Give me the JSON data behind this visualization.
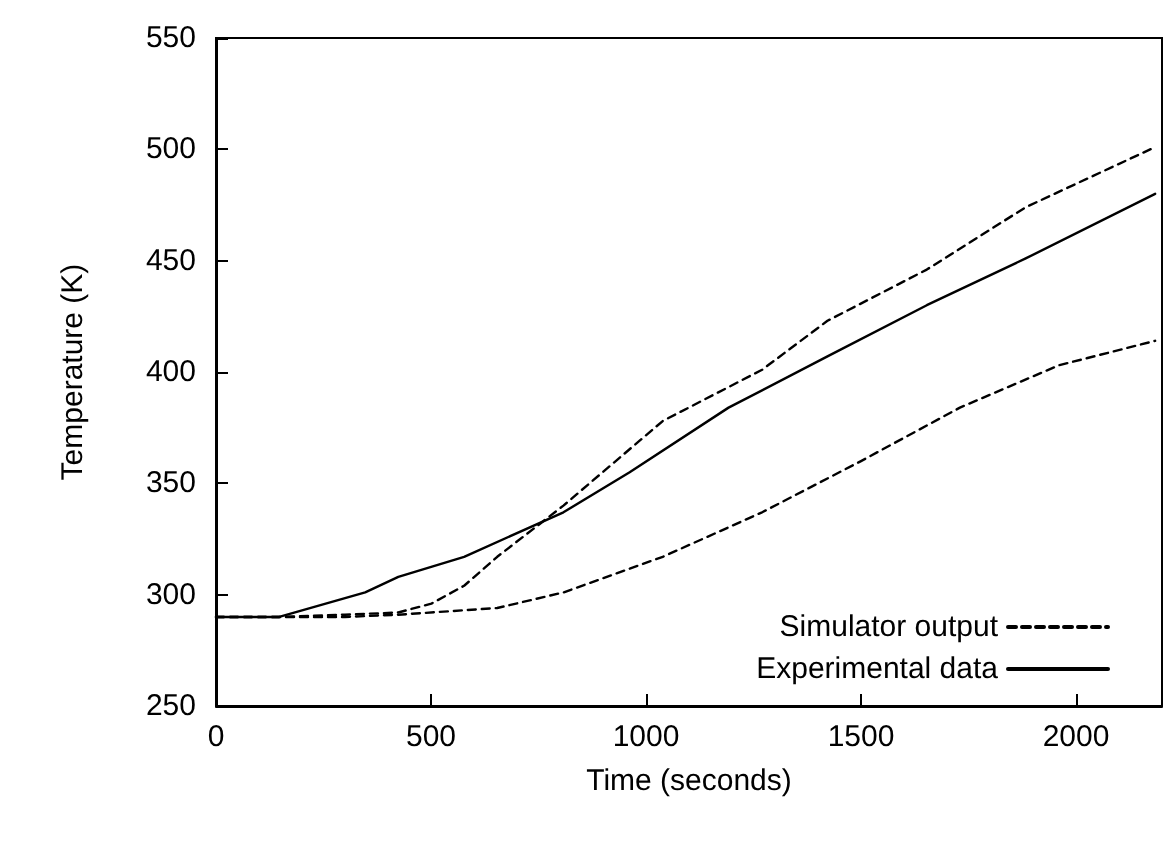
{
  "chart_data": {
    "type": "line",
    "xlabel": "Time (seconds)",
    "ylabel": "Temperature (K)",
    "xlim": [
      0,
      2200
    ],
    "xticks": [
      0,
      500,
      1000,
      1500,
      2000
    ],
    "ylim": [
      250,
      550
    ],
    "yticks": [
      250,
      300,
      350,
      400,
      450,
      500,
      550
    ],
    "grid": false,
    "legend": "bottom right",
    "marker": "none",
    "series": [
      {
        "name": "Simulator output",
        "color": "#000000",
        "line_style": "dashed",
        "x": [
          0,
          150,
          300,
          424,
          501,
          577,
          654,
          808,
          1039,
          1270,
          1422,
          1653,
          1883,
          2184
        ],
        "values": [
          290,
          290,
          291,
          292,
          296,
          304,
          317,
          340,
          378,
          401,
          423,
          446,
          474,
          501
        ]
      },
      {
        "color": "#000000",
        "line_style": "dashed",
        "x": [
          0,
          150,
          300,
          424,
          654,
          808,
          1039,
          1270,
          1500,
          1730,
          1960,
          2184
        ],
        "values": [
          290,
          290,
          290,
          291,
          294,
          301,
          317,
          337,
          360,
          384,
          403,
          414
        ]
      },
      {
        "name": "Experimental data",
        "color": "#000000",
        "line_style": "solid",
        "x": [
          0,
          147,
          347,
          424,
          577,
          808,
          962,
          1192,
          1422,
          1653,
          1883,
          2184
        ],
        "values": [
          290,
          290,
          301,
          308,
          317,
          337,
          355,
          384,
          407,
          430,
          451,
          480
        ]
      }
    ]
  }
}
